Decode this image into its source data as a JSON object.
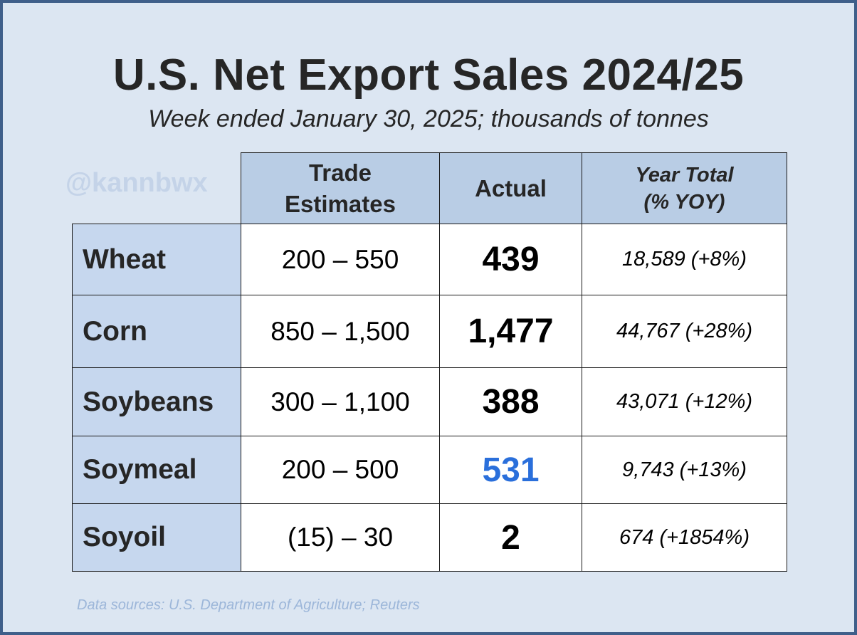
{
  "title": "U.S. Net Export Sales 2024/25",
  "subtitle": "Week ended January 30, 2025; thousands of tonnes",
  "watermark": "@kannbwx",
  "source": "Data sources: U.S. Department of Agriculture; Reuters",
  "colors": {
    "frame_border": "#3f5f8a",
    "background": "#dce6f2",
    "header_fill": "#b9cde5",
    "row_label_fill": "#c6d7ee",
    "highlight_value": "#2a6fdb"
  },
  "chart_data": {
    "type": "table",
    "title": "U.S. Net Export Sales 2024/25",
    "subtitle": "Week ended January 30, 2025; thousands of tonnes",
    "columns": [
      {
        "line1": "Trade",
        "line2": "Estimates"
      },
      {
        "line1": "Actual",
        "line2": ""
      },
      {
        "line1": "Year Total",
        "line2": "(% YOY)"
      }
    ],
    "rows": [
      {
        "commodity": "Wheat",
        "estimates": "200 – 550",
        "actual": "439",
        "year_total": "18,589",
        "yoy": "(+8%)",
        "actual_value": 439,
        "highlight": false
      },
      {
        "commodity": "Corn",
        "estimates": "850 – 1,500",
        "actual": "1,477",
        "year_total": "44,767",
        "yoy": "(+28%)",
        "actual_value": 1477,
        "highlight": false
      },
      {
        "commodity": "Soybeans",
        "estimates": "300 – 1,100",
        "actual": "388",
        "year_total": "43,071",
        "yoy": "(+12%)",
        "actual_value": 388,
        "highlight": false
      },
      {
        "commodity": "Soymeal",
        "estimates": "200 – 500",
        "actual": "531",
        "year_total": "9,743",
        "yoy": "(+13%)",
        "actual_value": 531,
        "highlight": true
      },
      {
        "commodity": "Soyoil",
        "estimates": "(15) – 30",
        "actual": "2",
        "year_total": "674",
        "yoy": "(+1854%)",
        "actual_value": 2,
        "highlight": false
      }
    ]
  }
}
